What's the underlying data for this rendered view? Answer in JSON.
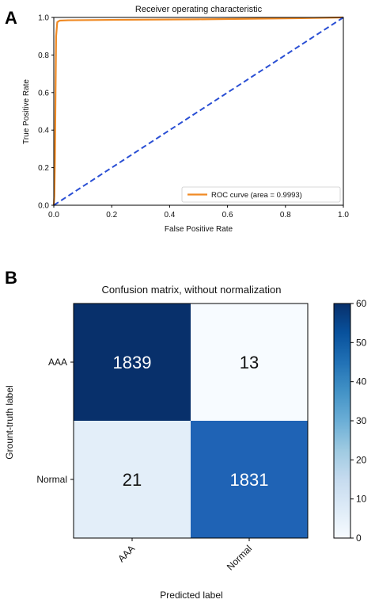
{
  "panels": {
    "a_letter": "A",
    "b_letter": "B"
  },
  "chart_data": [
    {
      "type": "line",
      "title": "Receiver operating characteristic",
      "xlabel": "False Positive Rate",
      "ylabel": "True Positive Rate",
      "xlim": [
        0.0,
        1.0
      ],
      "ylim": [
        0.0,
        1.0
      ],
      "x_ticks": [
        "0.0",
        "0.2",
        "0.4",
        "0.6",
        "0.8",
        "1.0"
      ],
      "y_ticks": [
        "0.0",
        "0.2",
        "0.4",
        "0.6",
        "0.8",
        "1.0"
      ],
      "grid": false,
      "legend_placement": "lower-right",
      "series": [
        {
          "name": "ROC curve (area = 0.9993)",
          "color": "#f08a24",
          "style": "solid",
          "x": [
            0.0,
            0.002,
            0.004,
            0.006,
            0.008,
            0.012,
            0.02,
            0.05,
            0.2,
            0.5,
            0.8,
            1.0
          ],
          "y": [
            0.0,
            0.05,
            0.25,
            0.6,
            0.9,
            0.975,
            0.983,
            0.985,
            0.987,
            0.99,
            0.995,
            1.0
          ]
        },
        {
          "name": "",
          "color": "#2a4fd4",
          "style": "dashed",
          "x": [
            0.0,
            1.0
          ],
          "y": [
            0.0,
            1.0
          ]
        }
      ]
    },
    {
      "type": "heatmap",
      "title": "Confusion matrix, without normalization",
      "xlabel": "Predicted label",
      "ylabel": "Grount-truth label",
      "x_categories": [
        "AAA",
        "Normal"
      ],
      "y_categories": [
        "AAA",
        "Normal"
      ],
      "values": [
        [
          1839,
          13
        ],
        [
          21,
          1831
        ]
      ],
      "cell_colors": [
        [
          "#08306b",
          "#f7fbff"
        ],
        [
          "#e3eef9",
          "#1f63b5"
        ]
      ],
      "text_colors": [
        [
          "#ffffff",
          "#111111"
        ],
        [
          "#111111",
          "#ffffff"
        ]
      ],
      "colorbar": {
        "range": [
          0,
          60
        ],
        "ticks": [
          "0",
          "10",
          "20",
          "30",
          "40",
          "50",
          "60"
        ],
        "colormap": "Blues"
      }
    }
  ]
}
